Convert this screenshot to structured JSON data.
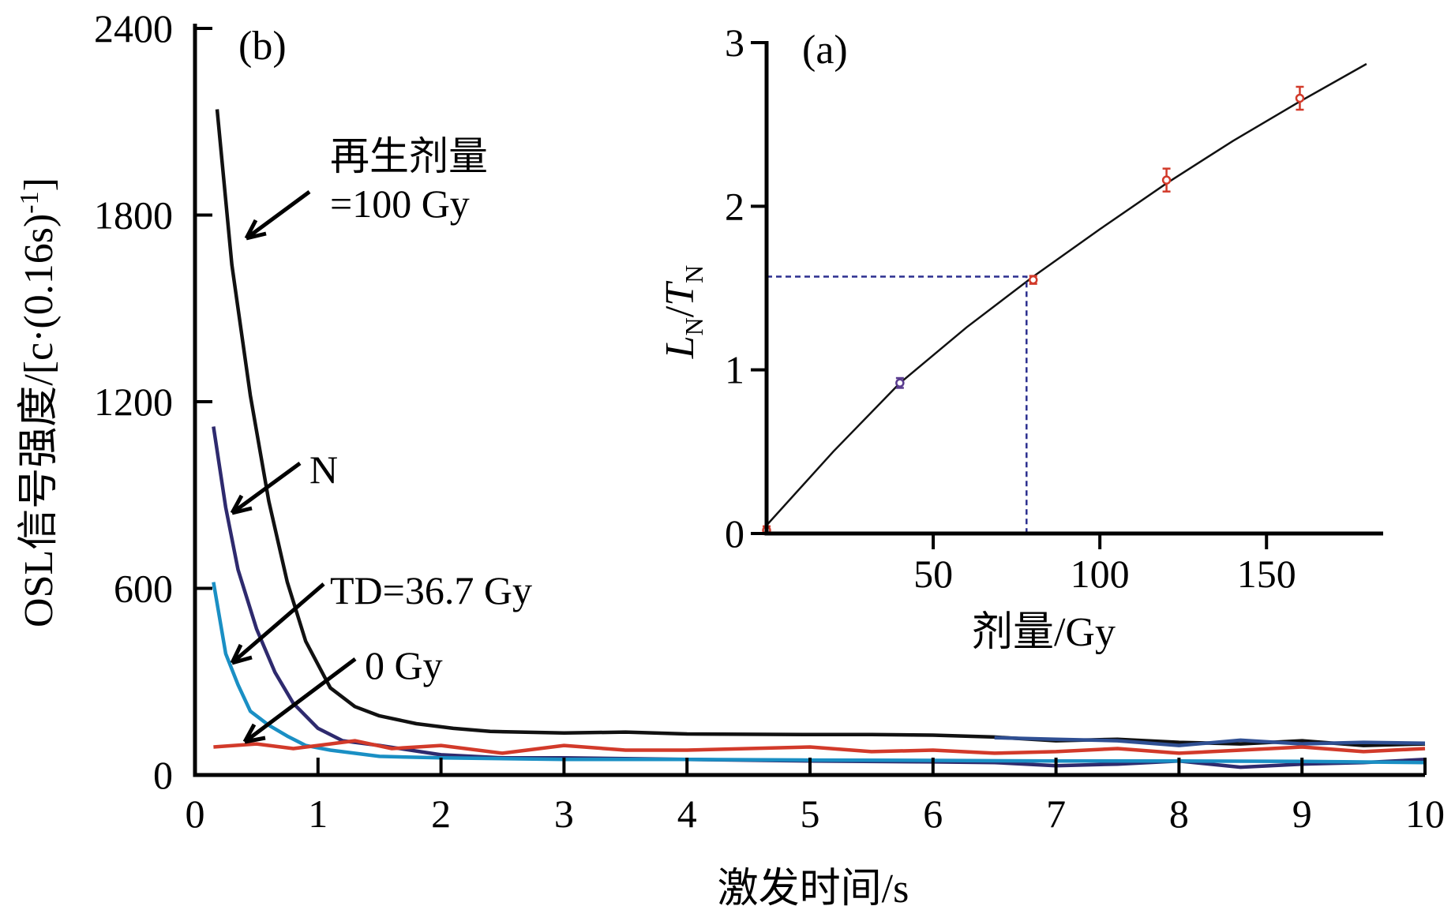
{
  "chart_data": [
    {
      "panel": "(b)",
      "type": "line",
      "xlabel": "激发时间/s",
      "ylabel": "OSL信号强度/[c·(0.16s)",
      "ylabel_sup": "-1",
      "ylabel_end": "]",
      "xlim": [
        0,
        10
      ],
      "ylim": [
        0,
        2400
      ],
      "xticks": [
        0,
        1,
        2,
        3,
        4,
        5,
        6,
        7,
        8,
        9,
        10
      ],
      "yticks": [
        0,
        600,
        1200,
        1800,
        2400
      ],
      "series": [
        {
          "color": "#111111",
          "x": [
            0.18,
            0.3,
            0.45,
            0.6,
            0.75,
            0.9,
            1.1,
            1.3,
            1.5,
            1.8,
            2.1,
            2.4,
            3,
            3.5,
            4,
            5,
            5.5,
            6,
            6.5,
            7,
            7.5,
            8,
            8.5,
            9,
            9.5,
            10
          ],
          "y": [
            2140,
            1640,
            1220,
            880,
            620,
            430,
            280,
            220,
            190,
            165,
            150,
            140,
            135,
            138,
            132,
            130,
            130,
            128,
            122,
            110,
            115,
            105,
            100,
            110,
            95,
            100
          ]
        },
        {
          "color": "#2e2a6e",
          "x": [
            0.15,
            0.25,
            0.35,
            0.5,
            0.65,
            0.8,
            1,
            1.2,
            1.5,
            2,
            2.5,
            3,
            4,
            5,
            6,
            6.5,
            7,
            7.5,
            8,
            8.5,
            9,
            9.5,
            10
          ],
          "y": [
            1120,
            860,
            660,
            470,
            330,
            230,
            150,
            110,
            95,
            65,
            55,
            55,
            50,
            45,
            42,
            40,
            30,
            35,
            45,
            25,
            35,
            40,
            50
          ]
        },
        {
          "color": "#1a8fc4",
          "x": [
            0.15,
            0.25,
            0.35,
            0.45,
            0.6,
            0.75,
            0.9,
            1.1,
            1.5,
            2,
            3,
            4,
            5,
            6,
            7,
            8,
            9,
            10
          ],
          "y": [
            620,
            390,
            290,
            205,
            160,
            125,
            95,
            80,
            60,
            55,
            50,
            50,
            48,
            47,
            45,
            45,
            44,
            40
          ]
        },
        {
          "color": "#2f4f93",
          "x": [
            6.5,
            7,
            7.5,
            8,
            8.5,
            9,
            9.5,
            10
          ],
          "y": [
            120,
            115,
            110,
            95,
            112,
            100,
            105,
            102
          ]
        },
        {
          "color": "#d23a2a",
          "x": [
            0.15,
            0.5,
            0.8,
            1,
            1.3,
            1.6,
            2,
            2.5,
            3,
            3.5,
            4,
            4.5,
            5,
            5.5,
            6,
            6.5,
            7,
            7.5,
            8,
            8.5,
            9,
            9.5,
            10
          ],
          "y": [
            90,
            100,
            85,
            95,
            110,
            85,
            95,
            70,
            95,
            80,
            80,
            85,
            90,
            75,
            80,
            70,
            75,
            85,
            70,
            80,
            90,
            75,
            85
          ]
        }
      ],
      "annotations": [
        {
          "text": "再生剂量"
        },
        {
          "text": "=100 Gy"
        },
        {
          "text": "N"
        },
        {
          "text": "TD=36.7 Gy"
        },
        {
          "text": "0 Gy"
        }
      ]
    },
    {
      "panel": "(a)",
      "type": "scatter",
      "xlabel": "剂量/Gy",
      "ylabel_L": "L",
      "ylabel_L_sub": "N",
      "ylabel_slash": "/",
      "ylabel_T": "T",
      "ylabel_T_sub": "N",
      "xlim": [
        0,
        185
      ],
      "ylim": [
        0,
        3
      ],
      "xticks": [
        50,
        100,
        150
      ],
      "yticks": [
        0,
        1,
        2,
        3
      ],
      "fit_curve": {
        "x": [
          0,
          20,
          40,
          60,
          80,
          100,
          120,
          140,
          160,
          180
        ],
        "y": [
          0.05,
          0.5,
          0.92,
          1.26,
          1.57,
          1.86,
          2.14,
          2.4,
          2.64,
          2.87
        ]
      },
      "points": [
        {
          "x": 0,
          "y": 0.02,
          "err": 0.02,
          "color": "#d23a2a"
        },
        {
          "x": 40,
          "y": 0.92,
          "err": 0.03,
          "color": "#5a3c8f"
        },
        {
          "x": 80,
          "y": 1.55,
          "err": 0.02,
          "color": "#d23a2a"
        },
        {
          "x": 120,
          "y": 2.16,
          "err": 0.07,
          "color": "#d23a2a"
        },
        {
          "x": 160,
          "y": 2.66,
          "err": 0.07,
          "color": "#d23a2a"
        }
      ],
      "guide": {
        "x": 78,
        "y": 1.57
      }
    }
  ]
}
